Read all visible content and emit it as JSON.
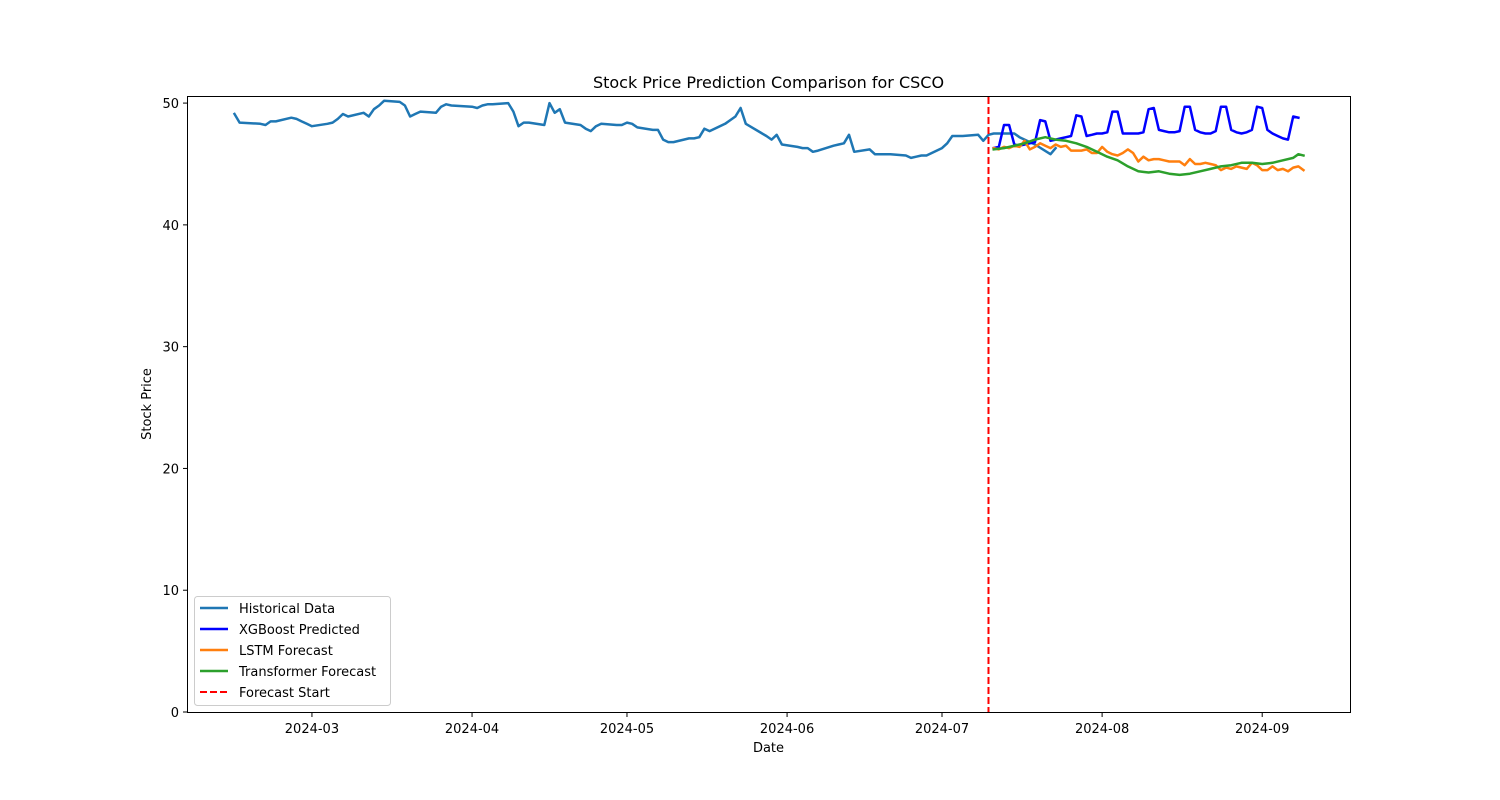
{
  "chart_data": {
    "type": "line",
    "title": "Stock Price Prediction Comparison for CSCO",
    "xlabel": "Date",
    "ylabel": "Stock Price",
    "xlim": [
      "2024-02-06",
      "2024-09-18"
    ],
    "ylim": [
      0,
      50.5
    ],
    "x_ticks": [
      "2024-03-01",
      "2024-04-01",
      "2024-05-01",
      "2024-06-01",
      "2024-07-01",
      "2024-08-01",
      "2024-09-01"
    ],
    "x_tick_labels": [
      "2024-03",
      "2024-04",
      "2024-05",
      "2024-06",
      "2024-07",
      "2024-08",
      "2024-09"
    ],
    "y_ticks": [
      0,
      10,
      20,
      30,
      40,
      50
    ],
    "y_tick_labels": [
      "0",
      "10",
      "20",
      "30",
      "40",
      "50"
    ],
    "grid": false,
    "legend_position": "lower-left",
    "forecast_start": {
      "name": "Forecast Start",
      "x": "2024-07-10",
      "color": "#ff0000"
    },
    "series": [
      {
        "name": "Historical Data",
        "color": "#1f77b4",
        "points": [
          [
            "2024-02-15",
            49.1
          ],
          [
            "2024-02-16",
            48.4
          ],
          [
            "2024-02-20",
            48.3
          ],
          [
            "2024-02-21",
            48.2
          ],
          [
            "2024-02-22",
            48.5
          ],
          [
            "2024-02-23",
            48.5
          ],
          [
            "2024-02-26",
            48.8
          ],
          [
            "2024-02-27",
            48.7
          ],
          [
            "2024-02-28",
            48.5
          ],
          [
            "2024-02-29",
            48.3
          ],
          [
            "2024-03-01",
            48.1
          ],
          [
            "2024-03-04",
            48.3
          ],
          [
            "2024-03-05",
            48.4
          ],
          [
            "2024-03-06",
            48.7
          ],
          [
            "2024-03-07",
            49.1
          ],
          [
            "2024-03-08",
            48.9
          ],
          [
            "2024-03-11",
            49.2
          ],
          [
            "2024-03-12",
            48.9
          ],
          [
            "2024-03-13",
            49.5
          ],
          [
            "2024-03-14",
            49.8
          ],
          [
            "2024-03-15",
            50.2
          ],
          [
            "2024-03-18",
            50.1
          ],
          [
            "2024-03-19",
            49.8
          ],
          [
            "2024-03-20",
            48.9
          ],
          [
            "2024-03-21",
            49.1
          ],
          [
            "2024-03-22",
            49.3
          ],
          [
            "2024-03-25",
            49.2
          ],
          [
            "2024-03-26",
            49.7
          ],
          [
            "2024-03-27",
            49.9
          ],
          [
            "2024-03-28",
            49.8
          ],
          [
            "2024-04-01",
            49.7
          ],
          [
            "2024-04-02",
            49.6
          ],
          [
            "2024-04-03",
            49.8
          ],
          [
            "2024-04-04",
            49.9
          ],
          [
            "2024-04-05",
            49.9
          ],
          [
            "2024-04-08",
            50.0
          ],
          [
            "2024-04-09",
            49.3
          ],
          [
            "2024-04-10",
            48.1
          ],
          [
            "2024-04-11",
            48.4
          ],
          [
            "2024-04-12",
            48.4
          ],
          [
            "2024-04-15",
            48.2
          ],
          [
            "2024-04-16",
            50.0
          ],
          [
            "2024-04-17",
            49.2
          ],
          [
            "2024-04-18",
            49.5
          ],
          [
            "2024-04-19",
            48.4
          ],
          [
            "2024-04-22",
            48.2
          ],
          [
            "2024-04-23",
            47.9
          ],
          [
            "2024-04-24",
            47.7
          ],
          [
            "2024-04-25",
            48.1
          ],
          [
            "2024-04-26",
            48.3
          ],
          [
            "2024-04-29",
            48.2
          ],
          [
            "2024-04-30",
            48.2
          ],
          [
            "2024-05-01",
            48.4
          ],
          [
            "2024-05-02",
            48.3
          ],
          [
            "2024-05-03",
            48.0
          ],
          [
            "2024-05-06",
            47.8
          ],
          [
            "2024-05-07",
            47.8
          ],
          [
            "2024-05-08",
            47.0
          ],
          [
            "2024-05-09",
            46.8
          ],
          [
            "2024-05-10",
            46.8
          ],
          [
            "2024-05-13",
            47.1
          ],
          [
            "2024-05-14",
            47.1
          ],
          [
            "2024-05-15",
            47.2
          ],
          [
            "2024-05-16",
            47.9
          ],
          [
            "2024-05-17",
            47.7
          ],
          [
            "2024-05-20",
            48.3
          ],
          [
            "2024-05-21",
            48.6
          ],
          [
            "2024-05-22",
            48.9
          ],
          [
            "2024-05-23",
            49.6
          ],
          [
            "2024-05-24",
            48.3
          ],
          [
            "2024-05-28",
            47.3
          ],
          [
            "2024-05-29",
            47.0
          ],
          [
            "2024-05-30",
            47.4
          ],
          [
            "2024-05-31",
            46.6
          ],
          [
            "2024-06-03",
            46.4
          ],
          [
            "2024-06-04",
            46.3
          ],
          [
            "2024-06-05",
            46.3
          ],
          [
            "2024-06-06",
            46.0
          ],
          [
            "2024-06-07",
            46.1
          ],
          [
            "2024-06-10",
            46.5
          ],
          [
            "2024-06-11",
            46.6
          ],
          [
            "2024-06-12",
            46.7
          ],
          [
            "2024-06-13",
            47.4
          ],
          [
            "2024-06-14",
            46.0
          ],
          [
            "2024-06-17",
            46.2
          ],
          [
            "2024-06-18",
            45.8
          ],
          [
            "2024-06-20",
            45.8
          ],
          [
            "2024-06-21",
            45.8
          ],
          [
            "2024-06-24",
            45.7
          ],
          [
            "2024-06-25",
            45.5
          ],
          [
            "2024-06-26",
            45.6
          ],
          [
            "2024-06-27",
            45.7
          ],
          [
            "2024-06-28",
            45.7
          ],
          [
            "2024-07-01",
            46.3
          ],
          [
            "2024-07-02",
            46.7
          ],
          [
            "2024-07-03",
            47.3
          ],
          [
            "2024-07-05",
            47.3
          ],
          [
            "2024-07-08",
            47.4
          ],
          [
            "2024-07-09",
            46.9
          ],
          [
            "2024-07-10",
            47.4
          ],
          [
            "2024-07-11",
            47.5
          ],
          [
            "2024-07-12",
            47.5
          ],
          [
            "2024-07-15",
            47.5
          ],
          [
            "2024-07-16",
            47.2
          ],
          [
            "2024-07-17",
            47.0
          ],
          [
            "2024-07-18",
            46.8
          ],
          [
            "2024-07-19",
            46.6
          ],
          [
            "2024-07-22",
            45.8
          ],
          [
            "2024-07-23",
            46.3
          ]
        ]
      },
      {
        "name": "XGBoost Predicted",
        "color": "#0000ff",
        "points": [
          [
            "2024-07-11",
            46.3
          ],
          [
            "2024-07-12",
            46.4
          ],
          [
            "2024-07-13",
            48.2
          ],
          [
            "2024-07-14",
            48.2
          ],
          [
            "2024-07-15",
            46.6
          ],
          [
            "2024-07-16",
            46.5
          ],
          [
            "2024-07-17",
            46.6
          ],
          [
            "2024-07-18",
            46.7
          ],
          [
            "2024-07-19",
            46.8
          ],
          [
            "2024-07-20",
            48.6
          ],
          [
            "2024-07-21",
            48.5
          ],
          [
            "2024-07-22",
            46.9
          ],
          [
            "2024-07-23",
            47.0
          ],
          [
            "2024-07-24",
            47.1
          ],
          [
            "2024-07-25",
            47.2
          ],
          [
            "2024-07-26",
            47.3
          ],
          [
            "2024-07-27",
            49.0
          ],
          [
            "2024-07-28",
            48.9
          ],
          [
            "2024-07-29",
            47.3
          ],
          [
            "2024-07-30",
            47.4
          ],
          [
            "2024-07-31",
            47.5
          ],
          [
            "2024-08-01",
            47.5
          ],
          [
            "2024-08-02",
            47.6
          ],
          [
            "2024-08-03",
            49.3
          ],
          [
            "2024-08-04",
            49.3
          ],
          [
            "2024-08-05",
            47.5
          ],
          [
            "2024-08-06",
            47.5
          ],
          [
            "2024-08-07",
            47.5
          ],
          [
            "2024-08-08",
            47.5
          ],
          [
            "2024-08-09",
            47.6
          ],
          [
            "2024-08-10",
            49.5
          ],
          [
            "2024-08-11",
            49.6
          ],
          [
            "2024-08-12",
            47.8
          ],
          [
            "2024-08-13",
            47.7
          ],
          [
            "2024-08-14",
            47.6
          ],
          [
            "2024-08-15",
            47.6
          ],
          [
            "2024-08-16",
            47.7
          ],
          [
            "2024-08-17",
            49.7
          ],
          [
            "2024-08-18",
            49.7
          ],
          [
            "2024-08-19",
            47.8
          ],
          [
            "2024-08-20",
            47.6
          ],
          [
            "2024-08-21",
            47.5
          ],
          [
            "2024-08-22",
            47.5
          ],
          [
            "2024-08-23",
            47.7
          ],
          [
            "2024-08-24",
            49.7
          ],
          [
            "2024-08-25",
            49.7
          ],
          [
            "2024-08-26",
            47.8
          ],
          [
            "2024-08-27",
            47.6
          ],
          [
            "2024-08-28",
            47.5
          ],
          [
            "2024-08-29",
            47.6
          ],
          [
            "2024-08-30",
            47.8
          ],
          [
            "2024-08-31",
            49.7
          ],
          [
            "2024-09-01",
            49.6
          ],
          [
            "2024-09-02",
            47.8
          ],
          [
            "2024-09-03",
            47.5
          ],
          [
            "2024-09-04",
            47.3
          ],
          [
            "2024-09-05",
            47.1
          ],
          [
            "2024-09-06",
            47.0
          ],
          [
            "2024-09-07",
            48.9
          ],
          [
            "2024-09-08",
            48.8
          ]
        ]
      },
      {
        "name": "LSTM Forecast",
        "color": "#ff7f0e",
        "points": [
          [
            "2024-07-11",
            46.3
          ],
          [
            "2024-07-12",
            46.2
          ],
          [
            "2024-07-13",
            46.4
          ],
          [
            "2024-07-14",
            46.3
          ],
          [
            "2024-07-15",
            46.5
          ],
          [
            "2024-07-16",
            46.4
          ],
          [
            "2024-07-17",
            46.9
          ],
          [
            "2024-07-18",
            46.2
          ],
          [
            "2024-07-19",
            46.4
          ],
          [
            "2024-07-20",
            46.7
          ],
          [
            "2024-07-21",
            46.5
          ],
          [
            "2024-07-22",
            46.3
          ],
          [
            "2024-07-23",
            46.6
          ],
          [
            "2024-07-24",
            46.4
          ],
          [
            "2024-07-25",
            46.5
          ],
          [
            "2024-07-26",
            46.1
          ],
          [
            "2024-07-27",
            46.1
          ],
          [
            "2024-07-28",
            46.1
          ],
          [
            "2024-07-29",
            46.2
          ],
          [
            "2024-07-30",
            45.9
          ],
          [
            "2024-07-31",
            45.9
          ],
          [
            "2024-08-01",
            46.4
          ],
          [
            "2024-08-02",
            46.0
          ],
          [
            "2024-08-03",
            45.8
          ],
          [
            "2024-08-04",
            45.7
          ],
          [
            "2024-08-05",
            45.9
          ],
          [
            "2024-08-06",
            46.2
          ],
          [
            "2024-08-07",
            45.9
          ],
          [
            "2024-08-08",
            45.2
          ],
          [
            "2024-08-09",
            45.6
          ],
          [
            "2024-08-10",
            45.3
          ],
          [
            "2024-08-11",
            45.4
          ],
          [
            "2024-08-12",
            45.4
          ],
          [
            "2024-08-13",
            45.3
          ],
          [
            "2024-08-14",
            45.2
          ],
          [
            "2024-08-15",
            45.2
          ],
          [
            "2024-08-16",
            45.2
          ],
          [
            "2024-08-17",
            44.9
          ],
          [
            "2024-08-18",
            45.4
          ],
          [
            "2024-08-19",
            45.0
          ],
          [
            "2024-08-20",
            45.0
          ],
          [
            "2024-08-21",
            45.1
          ],
          [
            "2024-08-22",
            45.0
          ],
          [
            "2024-08-23",
            44.9
          ],
          [
            "2024-08-24",
            44.5
          ],
          [
            "2024-08-25",
            44.7
          ],
          [
            "2024-08-26",
            44.6
          ],
          [
            "2024-08-27",
            44.8
          ],
          [
            "2024-08-28",
            44.7
          ],
          [
            "2024-08-29",
            44.6
          ],
          [
            "2024-08-30",
            45.1
          ],
          [
            "2024-08-31",
            44.9
          ],
          [
            "2024-09-01",
            44.5
          ],
          [
            "2024-09-02",
            44.5
          ],
          [
            "2024-09-03",
            44.8
          ],
          [
            "2024-09-04",
            44.5
          ],
          [
            "2024-09-05",
            44.6
          ],
          [
            "2024-09-06",
            44.4
          ],
          [
            "2024-09-07",
            44.7
          ],
          [
            "2024-09-08",
            44.8
          ],
          [
            "2024-09-09",
            44.5
          ]
        ]
      },
      {
        "name": "Transformer Forecast",
        "color": "#2ca02c",
        "points": [
          [
            "2024-07-11",
            46.2
          ],
          [
            "2024-07-13",
            46.3
          ],
          [
            "2024-07-15",
            46.5
          ],
          [
            "2024-07-17",
            46.7
          ],
          [
            "2024-07-19",
            47.0
          ],
          [
            "2024-07-21",
            47.2
          ],
          [
            "2024-07-23",
            47.0
          ],
          [
            "2024-07-25",
            46.9
          ],
          [
            "2024-07-27",
            46.7
          ],
          [
            "2024-07-29",
            46.4
          ],
          [
            "2024-07-31",
            46.0
          ],
          [
            "2024-08-02",
            45.6
          ],
          [
            "2024-08-04",
            45.3
          ],
          [
            "2024-08-06",
            44.8
          ],
          [
            "2024-08-08",
            44.4
          ],
          [
            "2024-08-10",
            44.3
          ],
          [
            "2024-08-12",
            44.4
          ],
          [
            "2024-08-14",
            44.2
          ],
          [
            "2024-08-16",
            44.1
          ],
          [
            "2024-08-18",
            44.2
          ],
          [
            "2024-08-20",
            44.4
          ],
          [
            "2024-08-22",
            44.6
          ],
          [
            "2024-08-24",
            44.8
          ],
          [
            "2024-08-26",
            44.9
          ],
          [
            "2024-08-28",
            45.1
          ],
          [
            "2024-08-30",
            45.1
          ],
          [
            "2024-09-01",
            45.0
          ],
          [
            "2024-09-03",
            45.1
          ],
          [
            "2024-09-05",
            45.3
          ],
          [
            "2024-09-07",
            45.5
          ],
          [
            "2024-09-08",
            45.8
          ],
          [
            "2024-09-09",
            45.7
          ]
        ]
      }
    ]
  }
}
